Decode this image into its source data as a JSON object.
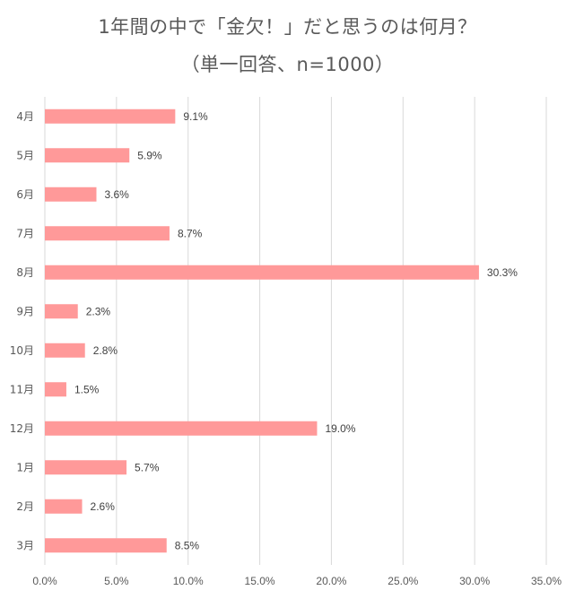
{
  "chart_data": {
    "type": "bar",
    "orientation": "horizontal",
    "title": "1年間の中で「金欠！」だと思うのは何月？",
    "subtitle": "（単一回答、n=1000）",
    "categories": [
      "4月",
      "5月",
      "6月",
      "7月",
      "8月",
      "9月",
      "10月",
      "11月",
      "12月",
      "1月",
      "2月",
      "3月"
    ],
    "values": [
      9.1,
      5.9,
      3.6,
      8.7,
      30.3,
      2.3,
      2.8,
      1.5,
      19.0,
      5.7,
      2.6,
      8.5
    ],
    "value_labels": [
      "9.1%",
      "5.9%",
      "3.6%",
      "8.7%",
      "30.3%",
      "2.3%",
      "2.8%",
      "1.5%",
      "19.0%",
      "5.7%",
      "2.6%",
      "8.5%"
    ],
    "xlim": [
      0,
      35
    ],
    "xticks": [
      0,
      5,
      10,
      15,
      20,
      25,
      30,
      35
    ],
    "xtick_labels": [
      "0.0%",
      "5.0%",
      "10.0%",
      "15.0%",
      "20.0%",
      "25.0%",
      "30.0%",
      "35.0%"
    ],
    "xlabel": "",
    "ylabel": "",
    "grid": "vertical",
    "legend": "none",
    "bar_color": "#ff9999",
    "grid_color": "#d9d9d9",
    "text_color": "#595959"
  }
}
